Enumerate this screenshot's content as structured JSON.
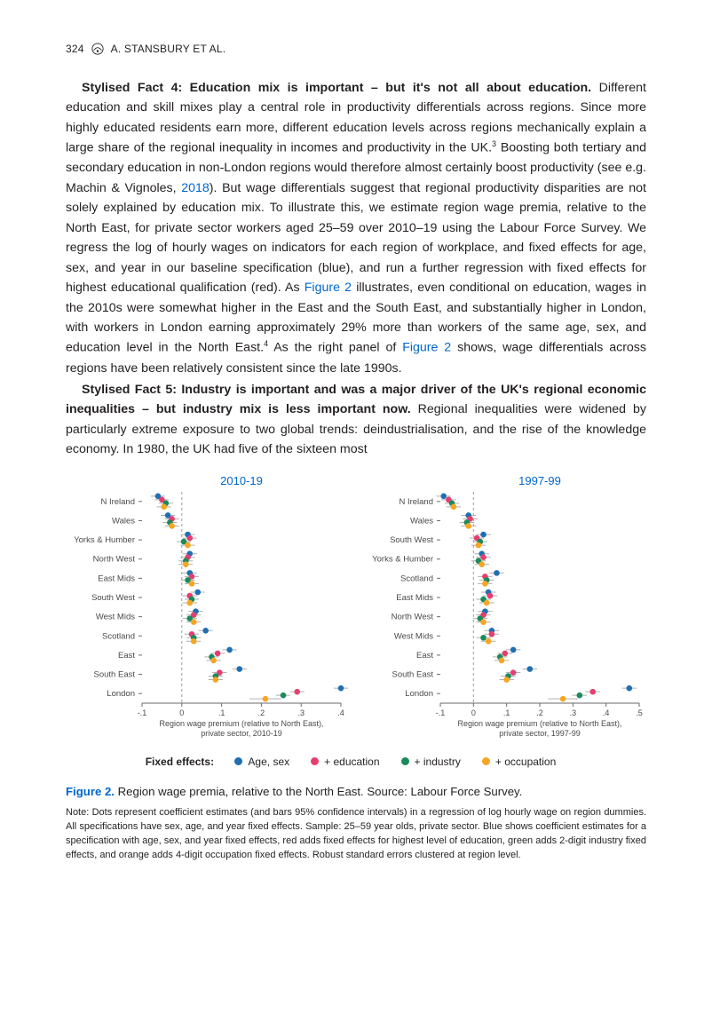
{
  "header": {
    "page_number": "324",
    "authors": "A. STANSBURY ET AL."
  },
  "paragraphs": {
    "p1_lead": "Stylised Fact 4: Education mix is important – but it's not all about education.",
    "p1_body_a": " Different education and skill mixes play a central role in productivity differentials across regions. Since more highly educated residents earn more, different education levels across regions mechanically explain a large share of the regional inequality in incomes and productivity in the UK.",
    "p1_sup1": "3",
    "p1_body_b": " Boosting both tertiary and secondary education in non-London regions would therefore almost certainly boost productivity (see e.g. Machin & Vignoles, ",
    "p1_link1": "2018",
    "p1_body_c": "). But wage differentials suggest that regional productivity disparities are not solely explained by education mix. To illustrate this, we estimate region wage premia, relative to the North East, for private sector workers aged 25–59 over 2010–19 using the Labour Force Survey. We regress the log of hourly wages on indicators for each region of workplace, and fixed effects for age, sex, and year in our baseline specification (blue), and run a further regression with fixed effects for highest educational qualification (red). As ",
    "p1_link2": "Figure 2",
    "p1_body_d": " illustrates, even conditional on education, wages in the 2010s were somewhat higher in the East and the South East, and substantially higher in London, with workers in London earning approximately 29% more than workers of the same age, sex, and education level in the North East.",
    "p1_sup2": "4",
    "p1_body_e": " As the right panel of ",
    "p1_link3": "Figure 2",
    "p1_body_f": " shows, wage differentials across regions have been relatively consistent since the late 1990s.",
    "p2_lead": "Stylised Fact 5: Industry is important and was a major driver of the UK's regional economic inequalities – but industry mix is less important now.",
    "p2_body": " Regional inequalities were widened by particularly extreme exposure to two global trends: deindustrialisation, and the rise of the knowledge economy. In 1980, the UK had five of the sixteen most"
  },
  "figure": {
    "type": "dot-plot",
    "marker_radius": 3.3,
    "whisker_color": "#b0b0b0",
    "text_color": "#4a4a4a",
    "title_color": "#0066cc",
    "grid": {
      "zero_line_color": "#9c9c9c",
      "zero_line_dash": "3,3",
      "axis_color": "#6a6a6a",
      "tick_font_size": 9,
      "ylabel_font_size": 9.5,
      "xlabel_font_size": 9,
      "title_font_size": 13
    },
    "colors": {
      "age_sex": "#1f6fb2",
      "education": "#e43f6f",
      "industry": "#1b8a5a",
      "occupation": "#f5a623"
    },
    "legend": {
      "label": "Fixed effects:",
      "items": [
        {
          "key": "age_sex",
          "text": "Age, sex"
        },
        {
          "key": "education",
          "text": "+ education"
        },
        {
          "key": "industry",
          "text": "+ industry"
        },
        {
          "key": "occupation",
          "text": "+ occupation"
        }
      ]
    },
    "panels": [
      {
        "title": "2010-19",
        "xlabel_line1": "Region wage premium (relative to North East),",
        "xlabel_line2": "private sector, 2010-19",
        "xlim": [
          -0.1,
          0.4
        ],
        "xticks": [
          -0.1,
          0,
          0.1,
          0.2,
          0.3,
          0.4
        ],
        "xtick_labels": [
          "-.1",
          "0",
          ".1",
          ".2",
          ".3",
          ".4"
        ],
        "categories": [
          "N Ireland",
          "Wales",
          "Yorks & Humber",
          "North West",
          "East Mids",
          "South West",
          "West Mids",
          "Scotland",
          "East",
          "South East",
          "London"
        ],
        "series": [
          {
            "color_key": "age_sex",
            "x": [
              -0.06,
              -0.035,
              0.015,
              0.02,
              0.02,
              0.04,
              0.035,
              0.06,
              0.12,
              0.145,
              0.4
            ]
          },
          {
            "color_key": "education",
            "x": [
              -0.05,
              -0.025,
              0.02,
              0.015,
              0.025,
              0.02,
              0.03,
              0.025,
              0.09,
              0.095,
              0.29
            ]
          },
          {
            "color_key": "industry",
            "x": [
              -0.04,
              -0.03,
              0.005,
              0.01,
              0.015,
              0.025,
              0.02,
              0.03,
              0.075,
              0.085,
              0.255
            ]
          },
          {
            "color_key": "occupation",
            "x": [
              -0.045,
              -0.025,
              0.015,
              0.01,
              0.025,
              0.02,
              0.03,
              0.03,
              0.08,
              0.085,
              0.21
            ]
          }
        ],
        "ci_half_width": 0.018,
        "london_occ_ci": 0.04
      },
      {
        "title": "1997-99",
        "xlabel_line1": "Region wage premium (relative to North East),",
        "xlabel_line2": "private sector, 1997-99",
        "xlim": [
          -0.1,
          0.5
        ],
        "xticks": [
          -0.1,
          0,
          0.1,
          0.2,
          0.3,
          0.4,
          0.5
        ],
        "xtick_labels": [
          "-.1",
          "0",
          ".1",
          ".2",
          ".3",
          ".4",
          ".5"
        ],
        "categories": [
          "N Ireland",
          "Wales",
          "South West",
          "Yorks & Humber",
          "Scotland",
          "East Mids",
          "North West",
          "West Mids",
          "East",
          "South East",
          "London"
        ],
        "series": [
          {
            "color_key": "age_sex",
            "x": [
              -0.09,
              -0.015,
              0.03,
              0.025,
              0.07,
              0.045,
              0.035,
              0.055,
              0.12,
              0.17,
              0.47
            ]
          },
          {
            "color_key": "education",
            "x": [
              -0.075,
              -0.01,
              0.01,
              0.03,
              0.035,
              0.05,
              0.03,
              0.055,
              0.095,
              0.12,
              0.36
            ]
          },
          {
            "color_key": "industry",
            "x": [
              -0.065,
              -0.02,
              0.02,
              0.015,
              0.04,
              0.03,
              0.02,
              0.03,
              0.08,
              0.105,
              0.32
            ]
          },
          {
            "color_key": "occupation",
            "x": [
              -0.06,
              -0.015,
              0.015,
              0.025,
              0.035,
              0.04,
              0.03,
              0.045,
              0.085,
              0.1,
              0.27
            ]
          }
        ],
        "ci_half_width": 0.022,
        "london_occ_ci": 0.045
      }
    ],
    "caption": {
      "label": "Figure 2.",
      "text": " Region wage premia, relative to the North East. Source: Labour Force Survey."
    },
    "note": "Note: Dots represent coefficient estimates (and bars 95% confidence intervals) in a regression of log hourly wage on region dummies. All specifications have sex, age, and year fixed effects. Sample: 25–59 year olds, private sector. Blue shows coefficient estimates for a specification with age, sex, and year fixed effects, red adds fixed effects for highest level of education, green adds 2-digit industry fixed effects, and orange adds 4-digit occupation fixed effects. Robust standard errors clustered at region level."
  }
}
